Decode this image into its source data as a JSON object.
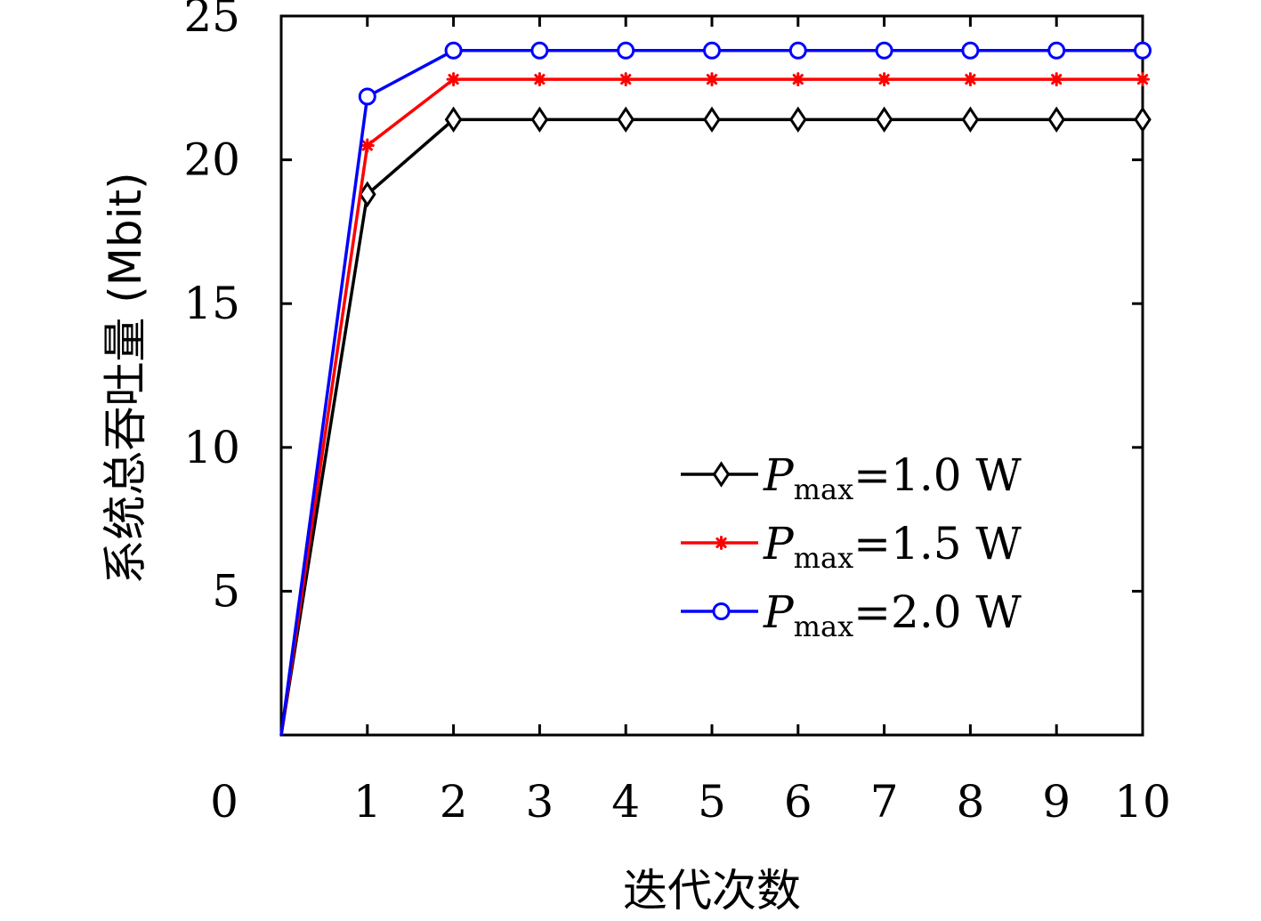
{
  "chart_data": {
    "type": "line",
    "title": "",
    "xlabel": "迭代次数",
    "ylabel": "系统总吞吐量 (Mbit)",
    "x": [
      0,
      1,
      2,
      3,
      4,
      5,
      6,
      7,
      8,
      9,
      10
    ],
    "xlim": [
      0,
      10
    ],
    "ylim": [
      0,
      25
    ],
    "xticks": [
      "0",
      "1",
      "2",
      "3",
      "4",
      "5",
      "6",
      "7",
      "8",
      "9",
      "10"
    ],
    "yticks": [
      "5",
      "10",
      "15",
      "20",
      "25"
    ],
    "ytick_values": [
      5,
      10,
      15,
      20,
      25
    ],
    "grid": false,
    "legend_position": "bottom-right",
    "series": [
      {
        "symbol": "P",
        "subscript": "max",
        "rest": "=1.0 W",
        "color": "#000000",
        "marker": "diamond",
        "values": [
          0,
          18.8,
          21.4,
          21.4,
          21.4,
          21.4,
          21.4,
          21.4,
          21.4,
          21.4,
          21.4
        ]
      },
      {
        "symbol": "P",
        "subscript": "max",
        "rest": "=1.5 W",
        "color": "#ff0000",
        "marker": "star",
        "values": [
          0,
          20.5,
          22.8,
          22.8,
          22.8,
          22.8,
          22.8,
          22.8,
          22.8,
          22.8,
          22.8
        ]
      },
      {
        "symbol": "P",
        "subscript": "max",
        "rest": "=2.0 W",
        "color": "#0000ff",
        "marker": "circle",
        "values": [
          0,
          22.2,
          23.8,
          23.8,
          23.8,
          23.8,
          23.8,
          23.8,
          23.8,
          23.8,
          23.8
        ]
      }
    ]
  }
}
